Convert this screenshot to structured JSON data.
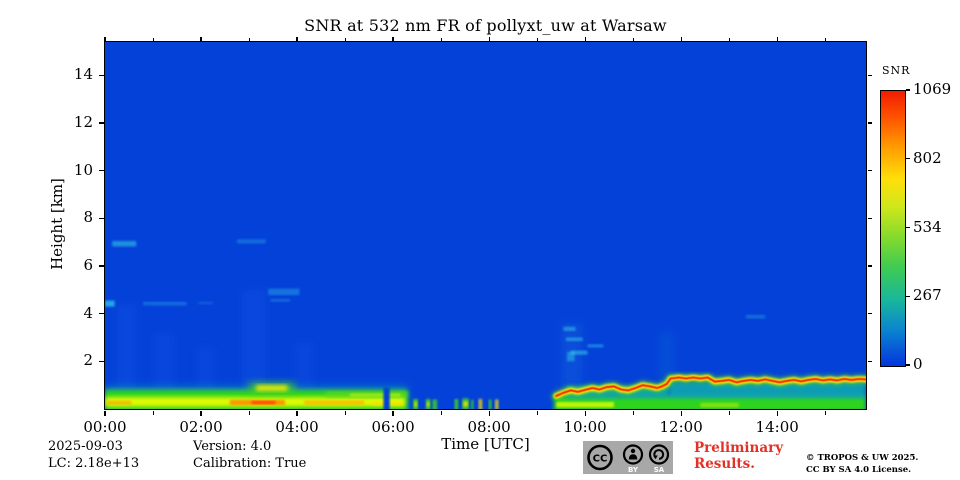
{
  "figure": {
    "title": "SNR at 532 nm FR of pollyxt_uw at Warsaw"
  },
  "chart_data": {
    "type": "heatmap",
    "title": "SNR at 532 nm FR of pollyxt_uw at Warsaw",
    "xlabel": "Time [UTC]",
    "ylabel": "Height [km]",
    "x_tick_labels": [
      "00:00",
      "02:00",
      "04:00",
      "06:00",
      "08:00",
      "10:00",
      "12:00",
      "14:00"
    ],
    "x_tick_hours": [
      0,
      2,
      4,
      6,
      8,
      10,
      12,
      14
    ],
    "x_minor_tick_hours": [
      1,
      3,
      5,
      7,
      9,
      11,
      13,
      15
    ],
    "x_range_hours": [
      0,
      15.85
    ],
    "y_tick_km": [
      2,
      4,
      6,
      8,
      10,
      12,
      14
    ],
    "y_range_km": [
      0,
      15.4
    ],
    "grid": false,
    "background_color": "#0441d8",
    "colorbar": {
      "label": "SNR",
      "tick_values": [
        0,
        267,
        534,
        802,
        1069
      ],
      "range": [
        0,
        1069
      ],
      "gradient_bottom_to_top": [
        {
          "pos": 0.0,
          "color": "#0435dd"
        },
        {
          "pos": 0.13,
          "color": "#0a84cf"
        },
        {
          "pos": 0.24,
          "color": "#19b79c"
        },
        {
          "pos": 0.36,
          "color": "#3fcb52"
        },
        {
          "pos": 0.48,
          "color": "#8cdc2a"
        },
        {
          "pos": 0.58,
          "color": "#cfe71b"
        },
        {
          "pos": 0.68,
          "color": "#ffdf0a"
        },
        {
          "pos": 0.79,
          "color": "#ffa000"
        },
        {
          "pos": 0.9,
          "color": "#ff5500"
        },
        {
          "pos": 1.0,
          "color": "#f01d00"
        }
      ]
    },
    "features": [
      {
        "kind": "rect",
        "t": [
          0.25,
          0.65
        ],
        "h": [
          0.8,
          4.4
        ],
        "color": "#2f7bff",
        "opacity": 0.1,
        "blur": 3
      },
      {
        "kind": "rect",
        "t": [
          1.0,
          1.45
        ],
        "h": [
          0.8,
          3.2
        ],
        "color": "#2f7bff",
        "opacity": 0.09,
        "blur": 3
      },
      {
        "kind": "rect",
        "t": [
          1.9,
          2.3
        ],
        "h": [
          0.8,
          2.6
        ],
        "color": "#2f7bff",
        "opacity": 0.09,
        "blur": 3
      },
      {
        "kind": "rect",
        "t": [
          2.85,
          3.35
        ],
        "h": [
          0.8,
          5.0
        ],
        "color": "#2f7bff",
        "opacity": 0.11,
        "blur": 3
      },
      {
        "kind": "rect",
        "t": [
          3.95,
          4.35
        ],
        "h": [
          0.8,
          2.8
        ],
        "color": "#2f7bff",
        "opacity": 0.09,
        "blur": 3
      },
      {
        "kind": "rect",
        "t": [
          9.5,
          9.95
        ],
        "h": [
          0.9,
          3.6
        ],
        "color": "#2fa0e0",
        "opacity": 0.13,
        "blur": 3
      },
      {
        "kind": "rect",
        "t": [
          11.55,
          11.85
        ],
        "h": [
          1.3,
          3.2
        ],
        "color": "#1fa8c8",
        "opacity": 0.13,
        "blur": 3
      },
      {
        "kind": "rect",
        "t": [
          0.0,
          0.2
        ],
        "h": [
          4.3,
          4.55
        ],
        "color": "#35d2e8",
        "opacity": 0.7,
        "blur": 1
      },
      {
        "kind": "rect",
        "t": [
          0.15,
          0.65
        ],
        "h": [
          6.82,
          7.05
        ],
        "color": "#35d2e8",
        "opacity": 0.55,
        "blur": 1
      },
      {
        "kind": "rect",
        "t": [
          0.8,
          1.7
        ],
        "h": [
          4.35,
          4.5
        ],
        "color": "#35d2e8",
        "opacity": 0.3,
        "blur": 1
      },
      {
        "kind": "rect",
        "t": [
          1.95,
          2.25
        ],
        "h": [
          4.4,
          4.5
        ],
        "color": "#35d2e8",
        "opacity": 0.22,
        "blur": 1
      },
      {
        "kind": "rect",
        "t": [
          2.75,
          3.35
        ],
        "h": [
          6.95,
          7.12
        ],
        "color": "#35d2e8",
        "opacity": 0.3,
        "blur": 1
      },
      {
        "kind": "rect",
        "t": [
          3.4,
          4.05
        ],
        "h": [
          4.78,
          5.05
        ],
        "color": "#35d2e8",
        "opacity": 0.35,
        "blur": 1
      },
      {
        "kind": "rect",
        "t": [
          3.45,
          3.85
        ],
        "h": [
          4.5,
          4.62
        ],
        "color": "#35d2e8",
        "opacity": 0.28,
        "blur": 1
      },
      {
        "kind": "rect",
        "t": [
          9.55,
          9.8
        ],
        "h": [
          3.28,
          3.45
        ],
        "color": "#35d2e8",
        "opacity": 0.5,
        "blur": 1
      },
      {
        "kind": "rect",
        "t": [
          9.6,
          9.95
        ],
        "h": [
          2.85,
          3.0
        ],
        "color": "#35d2e8",
        "opacity": 0.5,
        "blur": 1
      },
      {
        "kind": "rect",
        "t": [
          9.62,
          9.78
        ],
        "h": [
          2.0,
          2.4
        ],
        "color": "#35d2e8",
        "opacity": 0.45,
        "blur": 1
      },
      {
        "kind": "rect",
        "t": [
          9.7,
          10.05
        ],
        "h": [
          2.28,
          2.45
        ],
        "color": "#35d2e8",
        "opacity": 0.55,
        "blur": 1
      },
      {
        "kind": "rect",
        "t": [
          10.05,
          10.38
        ],
        "h": [
          2.58,
          2.72
        ],
        "color": "#35d2e8",
        "opacity": 0.45,
        "blur": 1
      },
      {
        "kind": "rect",
        "t": [
          13.35,
          13.75
        ],
        "h": [
          3.8,
          3.95
        ],
        "color": "#35d2e8",
        "opacity": 0.3,
        "blur": 1
      },
      {
        "kind": "rect",
        "t": [
          0,
          6.3
        ],
        "h": [
          -0.1,
          0.95
        ],
        "color": "#12a7b8",
        "opacity": 0.55,
        "blur": 3
      },
      {
        "kind": "rect",
        "t": [
          0,
          6.3
        ],
        "h": [
          -0.1,
          0.8
        ],
        "color": "#2fd41c",
        "opacity": 1,
        "blur": 2
      },
      {
        "kind": "rect",
        "t": [
          0,
          6.25
        ],
        "h": [
          0.1,
          0.5
        ],
        "color": "#f5ff00",
        "opacity": 0.9,
        "blur": 2
      },
      {
        "kind": "rect",
        "t": [
          0.05,
          0.55
        ],
        "h": [
          0.18,
          0.34
        ],
        "color": "#ffa200",
        "opacity": 0.75,
        "blur": 1
      },
      {
        "kind": "rect",
        "t": [
          2.6,
          3.75
        ],
        "h": [
          0.16,
          0.38
        ],
        "color": "#ff8c00",
        "opacity": 0.9,
        "blur": 1
      },
      {
        "kind": "rect",
        "t": [
          3.05,
          3.55
        ],
        "h": [
          0.2,
          0.34
        ],
        "color": "#ff3e00",
        "opacity": 0.85,
        "blur": 1
      },
      {
        "kind": "rect",
        "t": [
          4.15,
          5.4
        ],
        "h": [
          0.18,
          0.36
        ],
        "color": "#ffb300",
        "opacity": 0.8,
        "blur": 1
      },
      {
        "kind": "rect",
        "t": [
          5.55,
          6.2
        ],
        "h": [
          0.14,
          0.3
        ],
        "color": "#ffd800",
        "opacity": 0.7,
        "blur": 1
      },
      {
        "kind": "rect",
        "t": [
          3.0,
          3.95
        ],
        "h": [
          0.68,
          1.1
        ],
        "color": "#44d41c",
        "opacity": 0.8,
        "blur": 3
      },
      {
        "kind": "rect",
        "t": [
          3.15,
          3.8
        ],
        "h": [
          0.76,
          1.0
        ],
        "color": "#ffee00",
        "opacity": 0.9,
        "blur": 2
      },
      {
        "kind": "rect",
        "t": [
          4.6,
          6.3
        ],
        "h": [
          0.5,
          0.72
        ],
        "color": "#62d81f",
        "opacity": 0.8,
        "blur": 2
      },
      {
        "kind": "rect",
        "t": [
          5.1,
          6.15
        ],
        "h": [
          0.52,
          0.66
        ],
        "color": "#d8ef10",
        "opacity": 0.55,
        "blur": 1
      },
      {
        "kind": "rect",
        "t": [
          5.8,
          5.93
        ],
        "h": [
          -0.1,
          0.9
        ],
        "color": "#0441d8",
        "opacity": 1,
        "blur": 1
      },
      {
        "kind": "rect",
        "t": [
          6.42,
          6.52
        ],
        "h": [
          -0.05,
          0.42
        ],
        "color": "#3bd41e",
        "opacity": 0.9,
        "blur": 1
      },
      {
        "kind": "rect",
        "t": [
          6.44,
          6.5
        ],
        "h": [
          0.1,
          0.3
        ],
        "color": "#ffe000",
        "opacity": 0.7,
        "blur": 1
      },
      {
        "kind": "rect",
        "t": [
          6.68,
          6.78
        ],
        "h": [
          -0.05,
          0.42
        ],
        "color": "#3bd41e",
        "opacity": 0.85,
        "blur": 1
      },
      {
        "kind": "rect",
        "t": [
          6.7,
          6.76
        ],
        "h": [
          0.1,
          0.3
        ],
        "color": "#ffe000",
        "opacity": 0.7,
        "blur": 1
      },
      {
        "kind": "rect",
        "t": [
          6.82,
          6.92
        ],
        "h": [
          -0.05,
          0.4
        ],
        "color": "#3bd41e",
        "opacity": 0.8,
        "blur": 1
      },
      {
        "kind": "rect",
        "t": [
          7.28,
          7.36
        ],
        "h": [
          -0.05,
          0.42
        ],
        "color": "#3bd41e",
        "opacity": 0.85,
        "blur": 1
      },
      {
        "kind": "rect",
        "t": [
          7.44,
          7.58
        ],
        "h": [
          -0.05,
          0.45
        ],
        "color": "#3bd41e",
        "opacity": 0.85,
        "blur": 1
      },
      {
        "kind": "rect",
        "t": [
          7.46,
          7.56
        ],
        "h": [
          0.1,
          0.32
        ],
        "color": "#ffe000",
        "opacity": 0.75,
        "blur": 1
      },
      {
        "kind": "rect",
        "t": [
          7.62,
          7.68
        ],
        "h": [
          -0.05,
          0.38
        ],
        "color": "#3bd41e",
        "opacity": 0.7,
        "blur": 1
      },
      {
        "kind": "rect",
        "t": [
          7.78,
          7.86
        ],
        "h": [
          -0.05,
          0.42
        ],
        "color": "#ffd800",
        "opacity": 0.75,
        "blur": 1
      },
      {
        "kind": "rect",
        "t": [
          7.99,
          8.05
        ],
        "h": [
          -0.05,
          0.4
        ],
        "color": "#3bd41e",
        "opacity": 0.8,
        "blur": 1
      },
      {
        "kind": "rect",
        "t": [
          8.12,
          8.2
        ],
        "h": [
          -0.05,
          0.4
        ],
        "color": "#ffe000",
        "opacity": 0.7,
        "blur": 1
      },
      {
        "kind": "rect",
        "t": [
          9.35,
          15.85
        ],
        "h": [
          -0.1,
          0.55
        ],
        "color": "#2fd41c",
        "opacity": 1,
        "blur": 2
      },
      {
        "kind": "rect",
        "t": [
          9.4,
          10.6
        ],
        "h": [
          0.07,
          0.3
        ],
        "color": "#f0ff00",
        "opacity": 0.75,
        "blur": 1
      },
      {
        "kind": "rect",
        "t": [
          12.4,
          13.2
        ],
        "h": [
          0.07,
          0.26
        ],
        "color": "#d8f000",
        "opacity": 0.5,
        "blur": 1
      },
      {
        "kind": "rect",
        "t": [
          9.6,
          11.75
        ],
        "h": [
          0.45,
          0.95
        ],
        "color": "#14b3ae",
        "opacity": 0.8,
        "blur": 2
      },
      {
        "kind": "rect",
        "t": [
          11.75,
          15.85
        ],
        "h": [
          0.45,
          1.15
        ],
        "color": "#14b3ae",
        "opacity": 0.8,
        "blur": 2
      },
      {
        "kind": "line",
        "points": [
          [
            9.4,
            0.55
          ],
          [
            9.55,
            0.68
          ],
          [
            9.7,
            0.78
          ],
          [
            9.85,
            0.72
          ],
          [
            10.0,
            0.8
          ],
          [
            10.15,
            0.88
          ],
          [
            10.3,
            0.82
          ],
          [
            10.45,
            0.92
          ],
          [
            10.6,
            0.95
          ],
          [
            10.75,
            0.82
          ],
          [
            10.9,
            0.78
          ],
          [
            11.05,
            0.88
          ],
          [
            11.2,
            1.0
          ],
          [
            11.35,
            0.95
          ],
          [
            11.5,
            0.88
          ],
          [
            11.6,
            0.95
          ],
          [
            11.7,
            1.05
          ],
          [
            11.78,
            1.28
          ],
          [
            11.95,
            1.32
          ],
          [
            12.1,
            1.28
          ],
          [
            12.25,
            1.32
          ],
          [
            12.4,
            1.28
          ],
          [
            12.55,
            1.32
          ],
          [
            12.7,
            1.15
          ],
          [
            12.85,
            1.18
          ],
          [
            13.0,
            1.22
          ],
          [
            13.15,
            1.12
          ],
          [
            13.3,
            1.18
          ],
          [
            13.45,
            1.22
          ],
          [
            13.6,
            1.18
          ],
          [
            13.75,
            1.24
          ],
          [
            13.9,
            1.18
          ],
          [
            14.05,
            1.12
          ],
          [
            14.2,
            1.18
          ],
          [
            14.35,
            1.22
          ],
          [
            14.5,
            1.16
          ],
          [
            14.65,
            1.22
          ],
          [
            14.8,
            1.26
          ],
          [
            14.95,
            1.2
          ],
          [
            15.1,
            1.24
          ],
          [
            15.25,
            1.2
          ],
          [
            15.4,
            1.26
          ],
          [
            15.55,
            1.22
          ],
          [
            15.7,
            1.26
          ],
          [
            15.85,
            1.24
          ]
        ],
        "strokes": [
          {
            "color": "#3bd41e",
            "width": 10,
            "opacity": 0.55,
            "blur": 2
          },
          {
            "color": "#ffec00",
            "width": 6,
            "opacity": 0.95,
            "blur": 1
          },
          {
            "color": "#ff8c00",
            "width": 3,
            "opacity": 0.95,
            "blur": 0
          },
          {
            "color": "#f03200",
            "width": 1.6,
            "opacity": 0.95,
            "blur": 0
          }
        ]
      }
    ]
  },
  "footer": {
    "date": "2025-09-03",
    "lc": "LC: 2.18e+13",
    "version": "Version: 4.0",
    "calibration": "Calibration: True",
    "preliminary_line1": "Preliminary",
    "preliminary_line2": "Results.",
    "preliminary_color": "#e23227",
    "copyright_line1": "© TROPOS & UW 2025.",
    "copyright_line2": "CC BY SA 4.0 License."
  },
  "license_badge": {
    "cc": "CC",
    "by": "BY",
    "sa": "SA"
  }
}
